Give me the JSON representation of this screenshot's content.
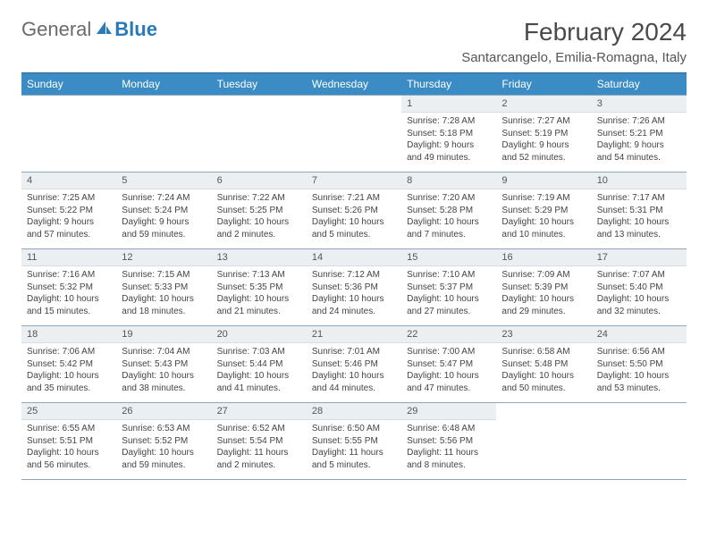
{
  "logo": {
    "text1": "General",
    "text2": "Blue"
  },
  "title": "February 2024",
  "location": "Santarcangelo, Emilia-Romagna, Italy",
  "colors": {
    "header_bg": "#3b8bc4",
    "header_text": "#ffffff",
    "border": "#8ba8c0",
    "daynum_bg": "#eceff2",
    "logo_gray": "#6a6a6a",
    "logo_blue": "#2a7ab8"
  },
  "days_of_week": [
    "Sunday",
    "Monday",
    "Tuesday",
    "Wednesday",
    "Thursday",
    "Friday",
    "Saturday"
  ],
  "weeks": [
    [
      null,
      null,
      null,
      null,
      {
        "n": "1",
        "sr": "Sunrise: 7:28 AM",
        "ss": "Sunset: 5:18 PM",
        "dl": "Daylight: 9 hours and 49 minutes."
      },
      {
        "n": "2",
        "sr": "Sunrise: 7:27 AM",
        "ss": "Sunset: 5:19 PM",
        "dl": "Daylight: 9 hours and 52 minutes."
      },
      {
        "n": "3",
        "sr": "Sunrise: 7:26 AM",
        "ss": "Sunset: 5:21 PM",
        "dl": "Daylight: 9 hours and 54 minutes."
      }
    ],
    [
      {
        "n": "4",
        "sr": "Sunrise: 7:25 AM",
        "ss": "Sunset: 5:22 PM",
        "dl": "Daylight: 9 hours and 57 minutes."
      },
      {
        "n": "5",
        "sr": "Sunrise: 7:24 AM",
        "ss": "Sunset: 5:24 PM",
        "dl": "Daylight: 9 hours and 59 minutes."
      },
      {
        "n": "6",
        "sr": "Sunrise: 7:22 AM",
        "ss": "Sunset: 5:25 PM",
        "dl": "Daylight: 10 hours and 2 minutes."
      },
      {
        "n": "7",
        "sr": "Sunrise: 7:21 AM",
        "ss": "Sunset: 5:26 PM",
        "dl": "Daylight: 10 hours and 5 minutes."
      },
      {
        "n": "8",
        "sr": "Sunrise: 7:20 AM",
        "ss": "Sunset: 5:28 PM",
        "dl": "Daylight: 10 hours and 7 minutes."
      },
      {
        "n": "9",
        "sr": "Sunrise: 7:19 AM",
        "ss": "Sunset: 5:29 PM",
        "dl": "Daylight: 10 hours and 10 minutes."
      },
      {
        "n": "10",
        "sr": "Sunrise: 7:17 AM",
        "ss": "Sunset: 5:31 PM",
        "dl": "Daylight: 10 hours and 13 minutes."
      }
    ],
    [
      {
        "n": "11",
        "sr": "Sunrise: 7:16 AM",
        "ss": "Sunset: 5:32 PM",
        "dl": "Daylight: 10 hours and 15 minutes."
      },
      {
        "n": "12",
        "sr": "Sunrise: 7:15 AM",
        "ss": "Sunset: 5:33 PM",
        "dl": "Daylight: 10 hours and 18 minutes."
      },
      {
        "n": "13",
        "sr": "Sunrise: 7:13 AM",
        "ss": "Sunset: 5:35 PM",
        "dl": "Daylight: 10 hours and 21 minutes."
      },
      {
        "n": "14",
        "sr": "Sunrise: 7:12 AM",
        "ss": "Sunset: 5:36 PM",
        "dl": "Daylight: 10 hours and 24 minutes."
      },
      {
        "n": "15",
        "sr": "Sunrise: 7:10 AM",
        "ss": "Sunset: 5:37 PM",
        "dl": "Daylight: 10 hours and 27 minutes."
      },
      {
        "n": "16",
        "sr": "Sunrise: 7:09 AM",
        "ss": "Sunset: 5:39 PM",
        "dl": "Daylight: 10 hours and 29 minutes."
      },
      {
        "n": "17",
        "sr": "Sunrise: 7:07 AM",
        "ss": "Sunset: 5:40 PM",
        "dl": "Daylight: 10 hours and 32 minutes."
      }
    ],
    [
      {
        "n": "18",
        "sr": "Sunrise: 7:06 AM",
        "ss": "Sunset: 5:42 PM",
        "dl": "Daylight: 10 hours and 35 minutes."
      },
      {
        "n": "19",
        "sr": "Sunrise: 7:04 AM",
        "ss": "Sunset: 5:43 PM",
        "dl": "Daylight: 10 hours and 38 minutes."
      },
      {
        "n": "20",
        "sr": "Sunrise: 7:03 AM",
        "ss": "Sunset: 5:44 PM",
        "dl": "Daylight: 10 hours and 41 minutes."
      },
      {
        "n": "21",
        "sr": "Sunrise: 7:01 AM",
        "ss": "Sunset: 5:46 PM",
        "dl": "Daylight: 10 hours and 44 minutes."
      },
      {
        "n": "22",
        "sr": "Sunrise: 7:00 AM",
        "ss": "Sunset: 5:47 PM",
        "dl": "Daylight: 10 hours and 47 minutes."
      },
      {
        "n": "23",
        "sr": "Sunrise: 6:58 AM",
        "ss": "Sunset: 5:48 PM",
        "dl": "Daylight: 10 hours and 50 minutes."
      },
      {
        "n": "24",
        "sr": "Sunrise: 6:56 AM",
        "ss": "Sunset: 5:50 PM",
        "dl": "Daylight: 10 hours and 53 minutes."
      }
    ],
    [
      {
        "n": "25",
        "sr": "Sunrise: 6:55 AM",
        "ss": "Sunset: 5:51 PM",
        "dl": "Daylight: 10 hours and 56 minutes."
      },
      {
        "n": "26",
        "sr": "Sunrise: 6:53 AM",
        "ss": "Sunset: 5:52 PM",
        "dl": "Daylight: 10 hours and 59 minutes."
      },
      {
        "n": "27",
        "sr": "Sunrise: 6:52 AM",
        "ss": "Sunset: 5:54 PM",
        "dl": "Daylight: 11 hours and 2 minutes."
      },
      {
        "n": "28",
        "sr": "Sunrise: 6:50 AM",
        "ss": "Sunset: 5:55 PM",
        "dl": "Daylight: 11 hours and 5 minutes."
      },
      {
        "n": "29",
        "sr": "Sunrise: 6:48 AM",
        "ss": "Sunset: 5:56 PM",
        "dl": "Daylight: 11 hours and 8 minutes."
      },
      null,
      null
    ]
  ]
}
